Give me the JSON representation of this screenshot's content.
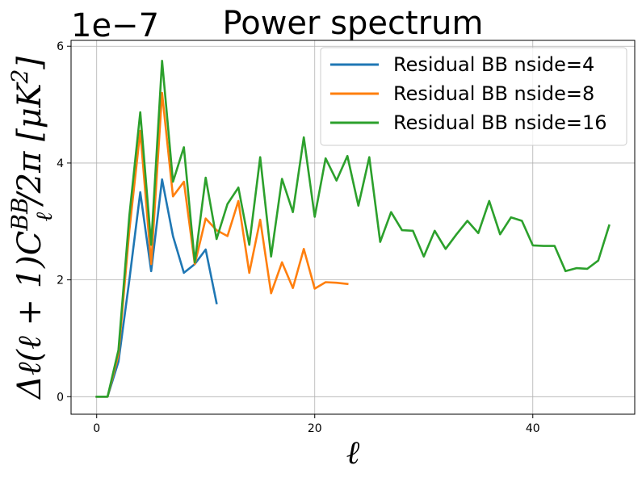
{
  "chart_data": {
    "type": "line",
    "title": "Power spectrum",
    "offset_text": "1e−7",
    "xlabel": "ℓ",
    "ylabel": {
      "prefix": "Δℓ(ℓ + 1)",
      "C": "C",
      "sup": "BB",
      "sub": "ℓ",
      "suffix": "/2π [μK",
      "unit_sup": "2",
      "close": "]"
    },
    "xlim": [
      -2.35,
      49.35
    ],
    "ylim": [
      -0.3,
      6.1
    ],
    "x_ticks": [
      0,
      20,
      40
    ],
    "x_tick_labels": [
      "0",
      "20",
      "40"
    ],
    "y_ticks": [
      0,
      2,
      4,
      6
    ],
    "y_tick_labels": [
      "0",
      "2",
      "4",
      "6"
    ],
    "grid": true,
    "legend_position": "upper right",
    "series": [
      {
        "name": "Residual BB nside=4",
        "color": "#1f77b4",
        "x": [
          0,
          1,
          2,
          3,
          4,
          5,
          6,
          7,
          8,
          9,
          10,
          11
        ],
        "y": [
          0,
          0,
          0.6,
          2.0,
          3.5,
          2.15,
          3.72,
          2.75,
          2.12,
          2.27,
          2.52,
          1.6
        ]
      },
      {
        "name": "Residual BB nside=8",
        "color": "#ff7f0e",
        "x": [
          0,
          1,
          2,
          3,
          4,
          5,
          6,
          7,
          8,
          9,
          10,
          11,
          12,
          13,
          14,
          15,
          16,
          17,
          18,
          19,
          20,
          21,
          22,
          23
        ],
        "y": [
          0,
          0,
          0.72,
          2.85,
          4.55,
          2.27,
          5.2,
          3.43,
          3.68,
          2.27,
          3.05,
          2.85,
          2.75,
          3.35,
          2.12,
          3.03,
          1.77,
          2.3,
          1.86,
          2.53,
          1.85,
          1.96,
          1.95,
          1.93
        ]
      },
      {
        "name": "Residual BB nside=16",
        "color": "#2ca02c",
        "x": [
          0,
          1,
          2,
          3,
          4,
          5,
          6,
          7,
          8,
          9,
          10,
          11,
          12,
          13,
          14,
          15,
          16,
          17,
          18,
          19,
          20,
          21,
          22,
          23,
          24,
          25,
          26,
          27,
          28,
          29,
          30,
          31,
          32,
          33,
          34,
          35,
          36,
          37,
          38,
          39,
          40,
          41,
          42,
          43,
          44,
          45,
          46,
          47
        ],
        "y": [
          0,
          0,
          0.8,
          3.1,
          4.87,
          2.6,
          5.75,
          3.68,
          4.27,
          2.3,
          3.75,
          2.7,
          3.3,
          3.58,
          2.6,
          4.1,
          2.4,
          3.73,
          3.16,
          4.44,
          3.08,
          4.08,
          3.7,
          4.12,
          3.27,
          4.1,
          2.65,
          3.16,
          2.85,
          2.84,
          2.4,
          2.84,
          2.53,
          2.78,
          3.01,
          2.8,
          3.35,
          2.78,
          3.07,
          3.01,
          2.59,
          2.58,
          2.58,
          2.15,
          2.2,
          2.19,
          2.33,
          2.93
        ]
      }
    ]
  }
}
